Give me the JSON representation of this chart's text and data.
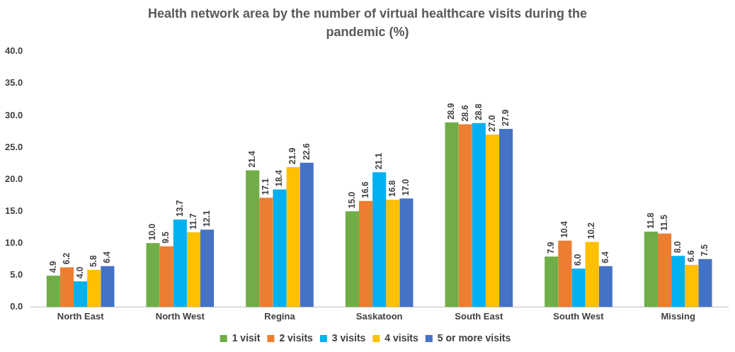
{
  "chart_data": {
    "type": "bar",
    "title": "Health network area by the number of virtual healthcare visits during the pandemic (%)",
    "categories": [
      "North East",
      "North West",
      "Regina",
      "Saskatoon",
      "South East",
      "South West",
      "Missing"
    ],
    "series": [
      {
        "name": "1 visit",
        "color": "#70ad47",
        "values": [
          4.9,
          10.0,
          21.4,
          15.0,
          28.9,
          7.9,
          11.8
        ],
        "value_labels": [
          "4.9",
          "10.0",
          "21.4",
          "15.0",
          "28.9",
          "7.9",
          "11.8"
        ]
      },
      {
        "name": "2 visits",
        "color": "#ed7d31",
        "values": [
          6.2,
          9.5,
          17.1,
          16.6,
          28.6,
          10.4,
          11.5
        ],
        "value_labels": [
          "6.2",
          "9.5",
          "17.1",
          "16.6",
          "28.6",
          "10.4",
          "11.5"
        ]
      },
      {
        "name": "3 visits",
        "color": "#00b0f0",
        "values": [
          4.0,
          13.7,
          18.4,
          21.1,
          28.8,
          6.0,
          8.0
        ],
        "value_labels": [
          "4.0",
          "13.7",
          "18.4",
          "21.1",
          "28.8",
          "6.0",
          "8.0"
        ]
      },
      {
        "name": "4 visits",
        "color": "#ffc000",
        "values": [
          5.8,
          11.7,
          21.9,
          16.8,
          27.0,
          10.2,
          6.6
        ],
        "value_labels": [
          "5.8",
          "11.7",
          "21.9",
          "16.8",
          "27.0",
          "10.2",
          "6.6"
        ]
      },
      {
        "name": "5 or more visits",
        "color": "#4472c4",
        "values": [
          6.4,
          12.1,
          22.6,
          17.0,
          27.9,
          6.4,
          7.5
        ],
        "value_labels": [
          "6.4",
          "12.1",
          "22.6",
          "17.0",
          "27.9",
          "6.4",
          "7.5"
        ]
      }
    ],
    "ylim": [
      0,
      40
    ],
    "yticks": [
      {
        "value": 0,
        "label": "0.0"
      },
      {
        "value": 5,
        "label": "5.0"
      },
      {
        "value": 10,
        "label": "10.0"
      },
      {
        "value": 15,
        "label": "15.0"
      },
      {
        "value": 20,
        "label": "20.0"
      },
      {
        "value": 25,
        "label": "25.0"
      },
      {
        "value": 30,
        "label": "30.0"
      },
      {
        "value": 35,
        "label": "35.0"
      },
      {
        "value": 40,
        "label": "40.0"
      }
    ],
    "grid": false,
    "legend": "bottom"
  }
}
